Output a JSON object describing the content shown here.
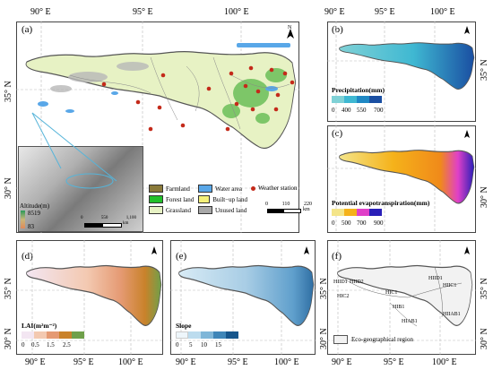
{
  "colors": {
    "farmland": "#8a7a3a",
    "forest": "#22c02a",
    "grassland": "#e7f2c4",
    "water": "#59a7e8",
    "builtup": "#f4f07a",
    "unused": "#a8a8a8",
    "station": "#c42a1a",
    "border": "#555555"
  },
  "top_axis": {
    "a": [
      "90° E",
      "95° E",
      "100° E"
    ],
    "b": [
      "90° E",
      "95° E",
      "100° E"
    ]
  },
  "bottom_axis": {
    "d": [
      "90° E",
      "95° E",
      "100° E"
    ],
    "e": [
      "90° E",
      "95° E",
      "100° E"
    ],
    "f": [
      "90° E",
      "95° E",
      "100° E"
    ]
  },
  "left_axis": {
    "a": [
      "35° N",
      "30° N"
    ],
    "d": [
      "35° N",
      "30° N"
    ]
  },
  "right_axis": {
    "b": "35° N",
    "c": "30° N",
    "e1": "35° N",
    "e2": "30° N",
    "f1": "35° N",
    "f2": "30° N"
  },
  "panels": {
    "a": "(a)",
    "b": "(b)",
    "c": "(c)",
    "d": "(d)",
    "e": "(e)",
    "f": "(f)"
  },
  "north": "N",
  "inset": {
    "title": "Altitude(m)",
    "max": "8519",
    "min": "83",
    "scale": [
      "0",
      "550",
      "1,100"
    ],
    "scale_unit": "km"
  },
  "legend_a": {
    "items": [
      {
        "name": "farmland",
        "label": "Farmland"
      },
      {
        "name": "water",
        "label": "Water area"
      },
      {
        "name": "forest",
        "label": "Forest land"
      },
      {
        "name": "builtup",
        "label": "Built−up land"
      },
      {
        "name": "grassland",
        "label": "Grassland"
      },
      {
        "name": "unused",
        "label": "Unused land"
      }
    ],
    "station": "Weather station",
    "scale": [
      "0",
      "110",
      "220"
    ],
    "scale_unit": "km"
  },
  "legend_b": {
    "title": "Precipitation(mm)",
    "ticks": [
      "0",
      "400",
      "550",
      "700"
    ],
    "colors": [
      "#7fd1d6",
      "#3fb8d2",
      "#1f88c4",
      "#1a4fa2"
    ]
  },
  "legend_c": {
    "title": "Potential evapotranspiration(mm)",
    "ticks": [
      "0",
      "500",
      "700",
      "900"
    ],
    "colors": [
      "#f4e58a",
      "#f5b21a",
      "#e040c8",
      "#2a1fb8"
    ]
  },
  "legend_d": {
    "title": "LAI(m²m⁻²)",
    "ticks": [
      "0",
      "0.5",
      "1.5",
      "2.5"
    ],
    "colors": [
      "#f3e6f2",
      "#f3c9b1",
      "#e59a73",
      "#c9822a",
      "#6fa04a"
    ]
  },
  "legend_e": {
    "title": "Slope",
    "ticks": [
      "0",
      "5",
      "10",
      "15"
    ],
    "colors": [
      "#eef6fb",
      "#bcdcee",
      "#7fb6d8",
      "#3f86b8",
      "#16568c"
    ]
  },
  "legend_f": {
    "label": "Eco-geographical region"
  },
  "regions": [
    "HIID1",
    "HIID2",
    "HIC1",
    "HIC2",
    "HIB1",
    "HIAB1",
    "HIID1",
    "HIIC1",
    "HIIAB1"
  ]
}
